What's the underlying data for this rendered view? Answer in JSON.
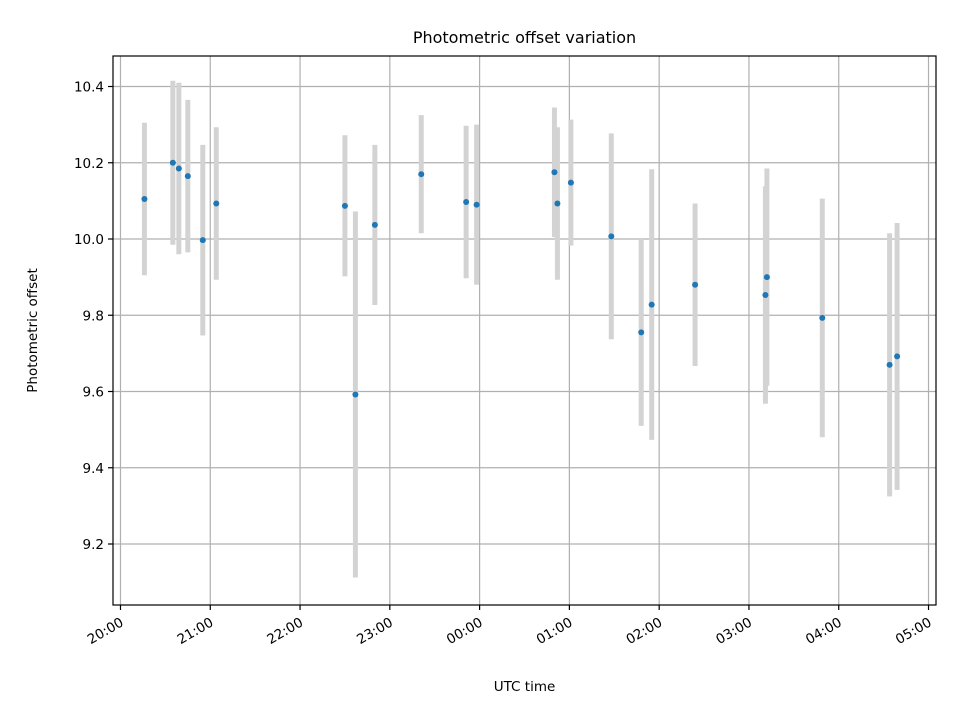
{
  "chart_data": {
    "type": "scatter",
    "title": "Photometric offset variation",
    "xlabel": "UTC time",
    "ylabel": "Photometric offset",
    "x_unit": "UTC time (HH:MM)",
    "xlim": [
      "19:55",
      "05:05"
    ],
    "ylim": [
      9.04,
      10.48
    ],
    "grid": true,
    "x_ticks": [
      "20:00",
      "21:00",
      "22:00",
      "23:00",
      "00:00",
      "01:00",
      "02:00",
      "03:00",
      "04:00",
      "05:00"
    ],
    "y_ticks": [
      9.2,
      9.4,
      9.6,
      9.8,
      10.0,
      10.2,
      10.4
    ],
    "y_tick_labels": [
      "9.2",
      "9.4",
      "9.6",
      "9.8",
      "10.0",
      "10.2",
      "10.4"
    ],
    "colors": {
      "point": "#1f77b4",
      "errorbar": "#d3d3d3",
      "grid": "#b0b0b0"
    },
    "points": [
      {
        "x": "20:16",
        "y": 10.105,
        "err": 0.2
      },
      {
        "x": "20:35",
        "y": 10.2,
        "err": 0.215
      },
      {
        "x": "20:39",
        "y": 10.185,
        "err": 0.225
      },
      {
        "x": "20:45",
        "y": 10.165,
        "err": 0.2
      },
      {
        "x": "20:55",
        "y": 9.997,
        "err": 0.25
      },
      {
        "x": "21:04",
        "y": 10.093,
        "err": 0.2
      },
      {
        "x": "22:30",
        "y": 10.087,
        "err": 0.185
      },
      {
        "x": "22:37",
        "y": 9.592,
        "err": 0.48
      },
      {
        "x": "22:50",
        "y": 10.037,
        "err": 0.21
      },
      {
        "x": "23:21",
        "y": 10.17,
        "err": 0.155
      },
      {
        "x": "23:51",
        "y": 10.097,
        "err": 0.2
      },
      {
        "x": "23:58",
        "y": 10.09,
        "err": 0.21
      },
      {
        "x": "00:50",
        "y": 10.175,
        "err": 0.17
      },
      {
        "x": "00:52",
        "y": 10.093,
        "err": 0.2
      },
      {
        "x": "01:01",
        "y": 10.148,
        "err": 0.165
      },
      {
        "x": "01:28",
        "y": 10.007,
        "err": 0.27
      },
      {
        "x": "01:48",
        "y": 9.755,
        "err": 0.245
      },
      {
        "x": "01:55",
        "y": 9.828,
        "err": 0.355
      },
      {
        "x": "02:24",
        "y": 9.88,
        "err": 0.213
      },
      {
        "x": "03:11",
        "y": 9.853,
        "err": 0.285
      },
      {
        "x": "03:12",
        "y": 9.9,
        "err": 0.285
      },
      {
        "x": "03:49",
        "y": 9.793,
        "err": 0.313
      },
      {
        "x": "04:34",
        "y": 9.67,
        "err": 0.345
      },
      {
        "x": "04:39",
        "y": 9.692,
        "err": 0.35
      }
    ]
  }
}
